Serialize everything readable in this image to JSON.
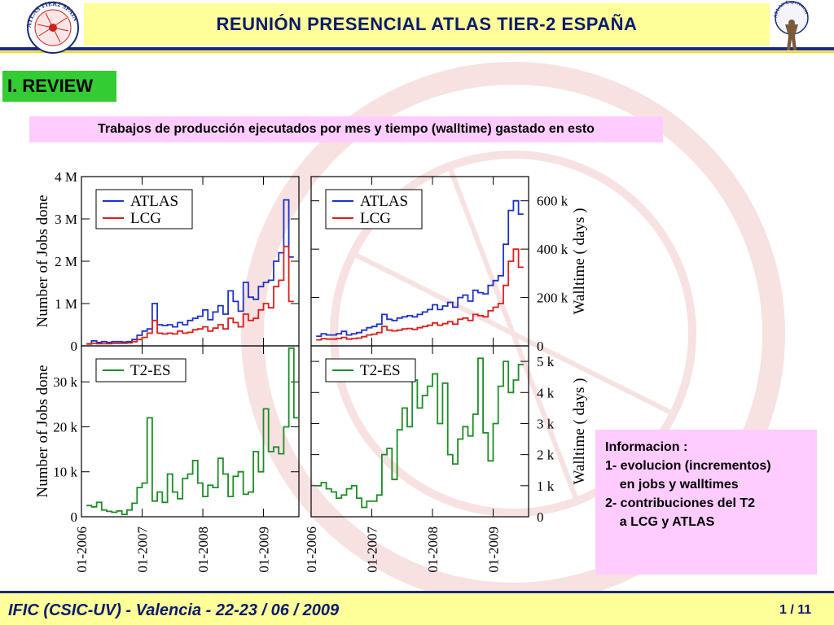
{
  "header": {
    "title": "REUNIÓN  PRESENCIAL  ATLAS  TIER-2  ESPAÑA",
    "logo_left_text": "ATLAS TIER2 SPAIN",
    "logo_right_text": "ATLAS Experiment"
  },
  "section": {
    "label": "I. REVIEW"
  },
  "subtitle": {
    "text": "Trabajos de producción ejecutados por mes y tiempo (walltime) gastado en esto"
  },
  "info": {
    "lines": [
      "Informacion :",
      "",
      "1- evolucion (incrementos)",
      "    en jobs y walltimes",
      "",
      "2- contribuciones del T2",
      "    a LCG y ATLAS"
    ]
  },
  "footer": {
    "left": "IFIC (CSIC-UV)  -  Valencia  -  22-23 / 06 / 2009",
    "right": "1 / 11"
  },
  "colors": {
    "atlas": "#1e32c8",
    "lcg": "#dc1e1e",
    "t2": "#1e8c28",
    "title": "#0a1a6e"
  },
  "chart_data": [
    {
      "type": "line",
      "ylabel": "Number of Jobs done",
      "yticks": [
        "0",
        "1 M",
        "2 M",
        "3 M",
        "4 M"
      ],
      "ylim": [
        0,
        4000000
      ],
      "legend": [
        "ATLAS",
        "LCG"
      ],
      "series": [
        {
          "name": "ATLAS",
          "values": [
            0.05,
            0.12,
            0.08,
            0.1,
            0.08,
            0.1,
            0.1,
            0.09,
            0.1,
            0.15,
            0.25,
            0.35,
            0.4,
            1.0,
            0.5,
            0.48,
            0.5,
            0.45,
            0.55,
            0.5,
            0.6,
            0.65,
            0.7,
            0.85,
            0.62,
            0.8,
            0.95,
            0.75,
            1.3,
            1.05,
            0.82,
            1.5,
            1.15,
            1.1,
            1.4,
            1.5,
            1.55,
            2.0,
            2.2,
            3.45,
            2.1
          ]
        },
        {
          "name": "LCG",
          "values": [
            0.04,
            0.06,
            0.05,
            0.05,
            0.05,
            0.06,
            0.06,
            0.06,
            0.07,
            0.1,
            0.15,
            0.2,
            0.3,
            0.6,
            0.3,
            0.28,
            0.3,
            0.28,
            0.35,
            0.3,
            0.32,
            0.38,
            0.4,
            0.45,
            0.35,
            0.42,
            0.5,
            0.4,
            0.65,
            0.55,
            0.45,
            0.75,
            0.6,
            0.65,
            0.85,
            1.0,
            0.9,
            1.4,
            1.55,
            2.35,
            1.05
          ]
        }
      ]
    },
    {
      "type": "line",
      "ylabel": "Walltime ( days )",
      "yticks": [
        "0",
        "200 k",
        "400 k",
        "600 k"
      ],
      "ylim": [
        0,
        700000
      ],
      "legend": [
        "ATLAS",
        "LCG"
      ],
      "series": [
        {
          "name": "ATLAS",
          "values": [
            40,
            50,
            45,
            45,
            50,
            60,
            45,
            50,
            55,
            65,
            75,
            80,
            90,
            130,
            110,
            105,
            115,
            120,
            125,
            120,
            130,
            140,
            150,
            170,
            150,
            165,
            180,
            160,
            200,
            210,
            185,
            230,
            220,
            215,
            250,
            270,
            290,
            420,
            560,
            600,
            545
          ]
        },
        {
          "name": "LCG",
          "values": [
            25,
            30,
            28,
            28,
            30,
            35,
            28,
            30,
            32,
            38,
            45,
            48,
            55,
            80,
            65,
            62,
            65,
            70,
            72,
            68,
            75,
            80,
            85,
            95,
            85,
            92,
            100,
            90,
            110,
            115,
            105,
            130,
            125,
            120,
            145,
            160,
            175,
            250,
            350,
            400,
            325
          ]
        }
      ]
    },
    {
      "type": "line",
      "ylabel": "Number of Jobs done",
      "yticks": [
        "0",
        "10 k",
        "20 k",
        "30 k"
      ],
      "ylim": [
        0,
        38000
      ],
      "legend": [
        "T2-ES"
      ],
      "series": [
        {
          "name": "T2-ES",
          "values": [
            2.5,
            2.2,
            3.2,
            1.5,
            1.2,
            1.0,
            1.3,
            0.5,
            1.5,
            3.0,
            6.5,
            7.5,
            22,
            3.5,
            5.5,
            3.2,
            9.5,
            5.5,
            4.0,
            8.5,
            9.5,
            12.5,
            7.5,
            4.5,
            7.0,
            6.5,
            13.0,
            9.5,
            4.5,
            9.0,
            10.0,
            5.0,
            5.5,
            14.5,
            10.0,
            24.0,
            14.5,
            15.5,
            14.0,
            20.0,
            37.5,
            22.0
          ]
        }
      ]
    },
    {
      "type": "line",
      "ylabel": "Walltime ( days )",
      "yticks": [
        "0",
        "1 k",
        "2 k",
        "3 k",
        "4 k",
        "5 k"
      ],
      "ylim": [
        0,
        5500
      ],
      "legend": [
        "T2-ES"
      ],
      "series": [
        {
          "name": "T2-ES",
          "values": [
            1.0,
            1.1,
            0.9,
            0.8,
            0.6,
            0.7,
            0.9,
            1.0,
            0.6,
            0.3,
            0.5,
            0.5,
            0.7,
            2.0,
            2.2,
            1.2,
            2.8,
            3.5,
            2.9,
            4.4,
            3.5,
            3.9,
            4.2,
            4.6,
            3.0,
            4.3,
            2.0,
            1.7,
            2.5,
            2.9,
            2.6,
            3.3,
            5.1,
            2.7,
            1.8,
            3.0,
            4.2,
            5.0,
            4.0,
            4.4,
            4.9
          ]
        }
      ]
    }
  ],
  "x_ticks": [
    "01-2006",
    "01-2007",
    "01-2008",
    "01-2009"
  ]
}
